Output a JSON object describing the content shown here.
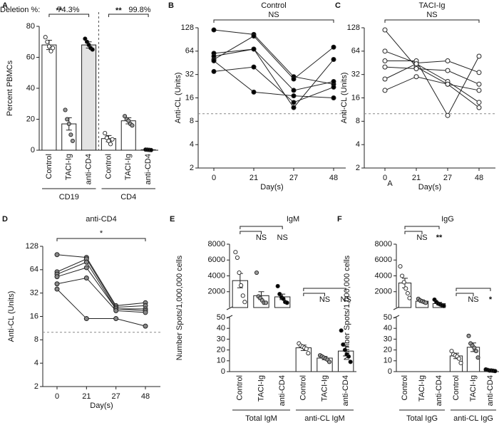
{
  "chart_data": [
    {
      "type": "bar",
      "panel": "A",
      "ylabel": "Percent PBMCs",
      "ylim": [
        0,
        80
      ],
      "yticks": [
        0,
        20,
        40,
        60,
        80
      ],
      "divider": true,
      "annotations": [
        "Deletion %:",
        "74.3%",
        "99.8%"
      ],
      "groups": [
        {
          "name": "CD19",
          "categories": [
            "Control",
            "TACI-Ig",
            "anti-CD4"
          ],
          "values": [
            68,
            17,
            68
          ],
          "errors": [
            3,
            4,
            2
          ],
          "points": [
            [
              73,
              70,
              67,
              64,
              66
            ],
            [
              26,
              20,
              17,
              10,
              6
            ],
            [
              72,
              70,
              68,
              66,
              65
            ]
          ],
          "bar_colors": [
            "#ffffff",
            "#ffffff",
            "#e3e3e3"
          ],
          "point_colors": [
            "#ffffff",
            "#999999",
            "#000000"
          ],
          "significance": [
            "**"
          ]
        },
        {
          "name": "CD4",
          "categories": [
            "Control",
            "TACI-Ig",
            "anti-CD4"
          ],
          "values": [
            7.5,
            19,
            0.3
          ],
          "errors": [
            2,
            2,
            0.1
          ],
          "points": [
            [
              11,
              8,
              6,
              4,
              7
            ],
            [
              22,
              20,
              19,
              17,
              16
            ],
            [
              0.4,
              0.3,
              0.2,
              0.1
            ]
          ],
          "bar_colors": [
            "#ffffff",
            "#ffffff",
            "#e3e3e3"
          ],
          "point_colors": [
            "#ffffff",
            "#999999",
            "#000000"
          ],
          "significance": [
            "**"
          ]
        }
      ]
    },
    {
      "type": "line",
      "panel": "B",
      "title": "Control",
      "ylabel": "Anti-CL (Units)",
      "xlabel": "Day(s)",
      "categories": [
        "0",
        "21",
        "27",
        "48"
      ],
      "log_scale": true,
      "ylim": [
        2,
        128
      ],
      "yticks": [
        2,
        4,
        8,
        16,
        32,
        64,
        128
      ],
      "reference_line": 10,
      "significance": "NS",
      "marker_color": "#000000",
      "series": [
        {
          "values": [
            120,
            105,
            30,
            24
          ]
        },
        {
          "values": [
            60,
            68,
            20,
            26
          ]
        },
        {
          "values": [
            55,
            68,
            12,
            50
          ]
        },
        {
          "values": [
            50,
            100,
            28,
            72
          ]
        },
        {
          "values": [
            35,
            40,
            14,
            22
          ]
        },
        {
          "values": [
            48,
            19,
            17,
            16
          ]
        }
      ]
    },
    {
      "type": "line",
      "panel": "C",
      "title": "TACI-Ig",
      "ylabel": "Anti-CL (Units)",
      "xlabel": "Day(s)",
      "categories": [
        "0",
        "21",
        "27",
        "48"
      ],
      "log_scale": true,
      "ylim": [
        2,
        128
      ],
      "yticks": [
        2,
        4,
        8,
        16,
        32,
        64,
        128
      ],
      "reference_line": 10,
      "significance": "NS",
      "marker_color": "#ffffff",
      "annotations": [
        "A"
      ],
      "series": [
        {
          "values": [
            120,
            40,
            24,
            20
          ]
        },
        {
          "values": [
            64,
            45,
            48,
            34
          ]
        },
        {
          "values": [
            48,
            48,
            9.5,
            55
          ]
        },
        {
          "values": [
            40,
            38,
            36,
            24
          ]
        },
        {
          "values": [
            28,
            44,
            26,
            14
          ]
        },
        {
          "values": [
            20,
            30,
            24,
            12
          ]
        }
      ]
    },
    {
      "type": "line",
      "panel": "D",
      "title": "anti-CD4",
      "ylabel": "Anti-CL (Units)",
      "xlabel": "Day(s)",
      "categories": [
        "0",
        "21",
        "27",
        "48"
      ],
      "log_scale": true,
      "ylim": [
        2,
        128
      ],
      "yticks": [
        2,
        4,
        8,
        16,
        32,
        64,
        128
      ],
      "reference_line": 10,
      "significance": "*",
      "marker_color": "#888888",
      "series": [
        {
          "values": [
            100,
            92,
            22,
            24
          ]
        },
        {
          "values": [
            60,
            88,
            21,
            22
          ]
        },
        {
          "values": [
            56,
            80,
            20,
            20
          ]
        },
        {
          "values": [
            52,
            68,
            20,
            19
          ]
        },
        {
          "values": [
            42,
            50,
            19,
            18
          ]
        },
        {
          "values": [
            36,
            15,
            15,
            12
          ]
        }
      ]
    },
    {
      "type": "bar",
      "panel": "E",
      "title": "IgM",
      "ylabel": "Number Spots/1,000,000 cells",
      "ylim": [
        0,
        50
      ],
      "yticks": [
        0,
        10,
        20,
        30,
        40,
        50
      ],
      "ylim_top": [
        0,
        8000
      ],
      "yticks_top": [
        2000,
        4000,
        6000,
        8000
      ],
      "groups": [
        {
          "name": "Total IgM",
          "scale": "top",
          "categories": [
            "Control",
            "TACI-Ig",
            "anti-CD4"
          ],
          "values": [
            3400,
            1500,
            1350
          ],
          "errors": [
            900,
            500,
            350
          ],
          "points": [
            [
              7000,
              6300,
              4400,
              2800,
              1500,
              700
            ],
            [
              4400,
              1400,
              1200,
              900,
              600,
              600
            ],
            [
              2700,
              1700,
              1300,
              1100,
              700,
              600
            ]
          ],
          "bar_colors": [
            "#ffffff",
            "#ffffff",
            "#ffffff"
          ],
          "point_colors": [
            "#ffffff",
            "#999999",
            "#000000"
          ],
          "significance": [
            "NS",
            "NS"
          ]
        },
        {
          "name": "anti-CL IgM",
          "categories": [
            "Control",
            "TACI-Ig",
            "anti-CD4"
          ],
          "values": [
            22,
            12.5,
            19
          ],
          "errors": [
            2.5,
            1.5,
            4.5
          ],
          "points": [
            [
              26,
              24,
              23,
              22,
              21,
              17
            ],
            [
              15,
              14,
              13,
              12,
              11,
              9
            ],
            [
              38,
              25,
              20,
              16,
              14,
              9
            ]
          ],
          "bar_colors": [
            "#ffffff",
            "#ffffff",
            "#ffffff"
          ],
          "point_colors": [
            "#ffffff",
            "#999999",
            "#000000"
          ],
          "significance": [
            "NS",
            "NS"
          ]
        }
      ]
    },
    {
      "type": "bar",
      "panel": "F",
      "title": "IgG",
      "ylabel": "Number Spots/1,000,000 cells",
      "ylim": [
        0,
        50
      ],
      "yticks": [
        0,
        10,
        20,
        30,
        40,
        50
      ],
      "ylim_top": [
        0,
        8000
      ],
      "yticks_top": [
        2000,
        4000,
        6000,
        8000
      ],
      "groups": [
        {
          "name": "Total IgG",
          "scale": "top",
          "categories": [
            "Control",
            "TACI-Ig",
            "anti-CD4"
          ],
          "values": [
            3100,
            800,
            500
          ],
          "errors": [
            600,
            150,
            150
          ],
          "points": [
            [
              5200,
              4000,
              3200,
              2400,
              1800,
              1200
            ],
            [
              1100,
              900,
              800,
              700,
              600
            ],
            [
              1000,
              700,
              500,
              400,
              300,
              200
            ]
          ],
          "bar_colors": [
            "#ffffff",
            "#ffffff",
            "#ffffff"
          ],
          "point_colors": [
            "#ffffff",
            "#999999",
            "#000000"
          ],
          "significance": [
            "NS",
            "**"
          ]
        },
        {
          "name": "anti-CL IgG",
          "categories": [
            "Control",
            "TACI-Ig",
            "anti-CD4"
          ],
          "values": [
            14.5,
            22.5,
            1.5
          ],
          "errors": [
            2.5,
            4,
            0.5
          ],
          "points": [
            [
              19,
              16,
              15,
              14,
              12,
              8
            ],
            [
              33,
              26,
              24,
              22,
              19,
              13
            ],
            [
              2,
              1.5,
              1,
              1,
              0.8,
              0.5
            ]
          ],
          "bar_colors": [
            "#ffffff",
            "#ffffff",
            "#ffffff"
          ],
          "point_colors": [
            "#ffffff",
            "#999999",
            "#000000"
          ],
          "significance": [
            "NS",
            "*"
          ]
        }
      ]
    }
  ]
}
